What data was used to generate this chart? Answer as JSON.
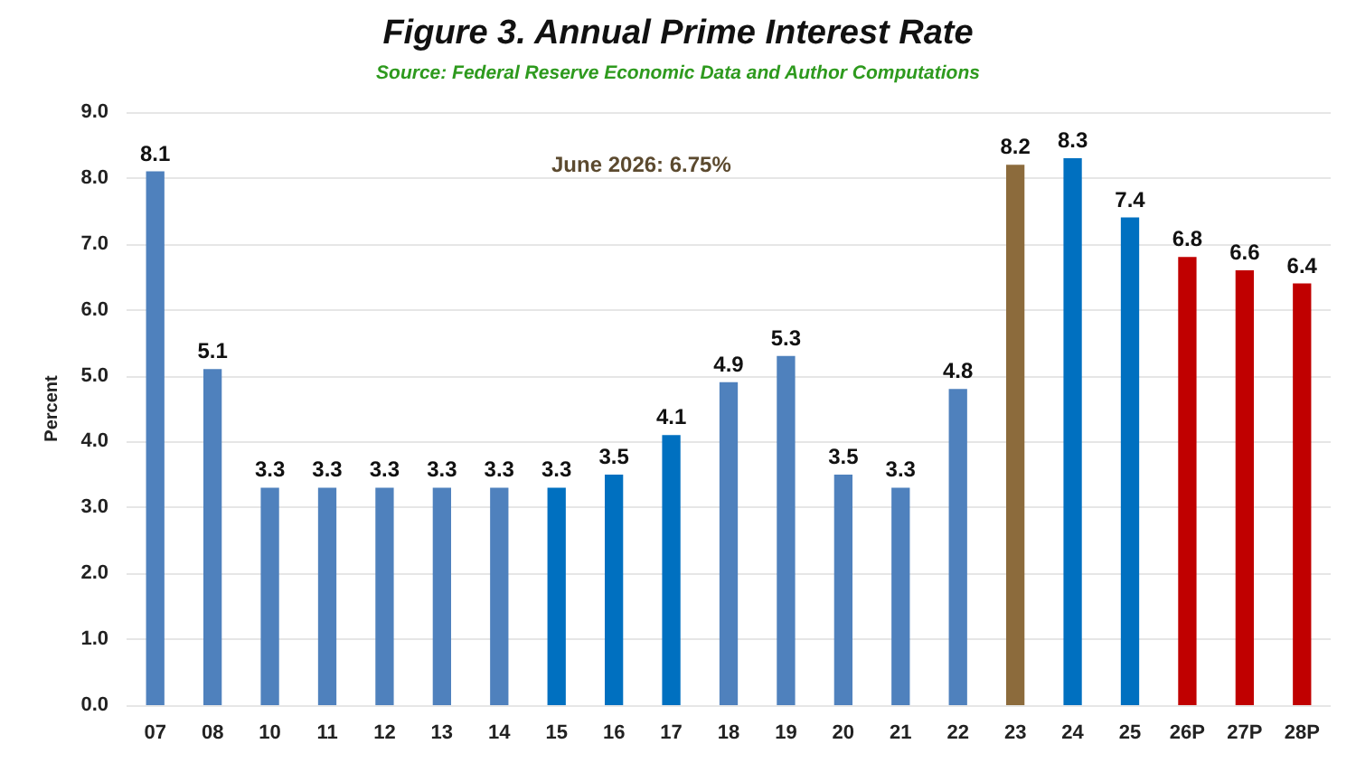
{
  "chart_data": {
    "type": "bar",
    "title": "Figure 3. Annual Prime Interest Rate",
    "subtitle": "Source: Federal Reserve Economic Data and Author Computations",
    "ylabel": "Percent",
    "annotations": [
      "June 2026: 6.75%"
    ],
    "categories": [
      "07",
      "08",
      "10",
      "11",
      "12",
      "13",
      "14",
      "15",
      "16",
      "17",
      "18",
      "19",
      "20",
      "21",
      "22",
      "23",
      "24",
      "25",
      "26P",
      "27P",
      "28P"
    ],
    "values": [
      8.1,
      5.1,
      3.3,
      3.3,
      3.3,
      3.3,
      3.3,
      3.3,
      3.5,
      4.1,
      4.9,
      5.3,
      3.5,
      3.3,
      4.8,
      8.2,
      8.3,
      7.4,
      6.8,
      6.6,
      6.4
    ],
    "colors": [
      "#4f81bd",
      "#4f81bd",
      "#4f81bd",
      "#4f81bd",
      "#4f81bd",
      "#4f81bd",
      "#4f81bd",
      "#0070c0",
      "#0070c0",
      "#0070c0",
      "#4f81bd",
      "#4f81bd",
      "#4f81bd",
      "#4f81bd",
      "#4f81bd",
      "#8c6b3c",
      "#0070c0",
      "#0070c0",
      "#c00000",
      "#c00000",
      "#c00000"
    ],
    "ylim": [
      0,
      9
    ],
    "yticks": [
      {
        "value": 0,
        "label": "0.0"
      },
      {
        "value": 1,
        "label": "1.0"
      },
      {
        "value": 2,
        "label": "2.0"
      },
      {
        "value": 3,
        "label": "3.0"
      },
      {
        "value": 4,
        "label": "4.0"
      },
      {
        "value": 5,
        "label": "5.0"
      },
      {
        "value": 6,
        "label": "6.0"
      },
      {
        "value": 7,
        "label": "7.0"
      },
      {
        "value": 8,
        "label": "8.0"
      },
      {
        "value": 9,
        "label": "9.0"
      }
    ],
    "grid": "y",
    "data_labels": true
  }
}
